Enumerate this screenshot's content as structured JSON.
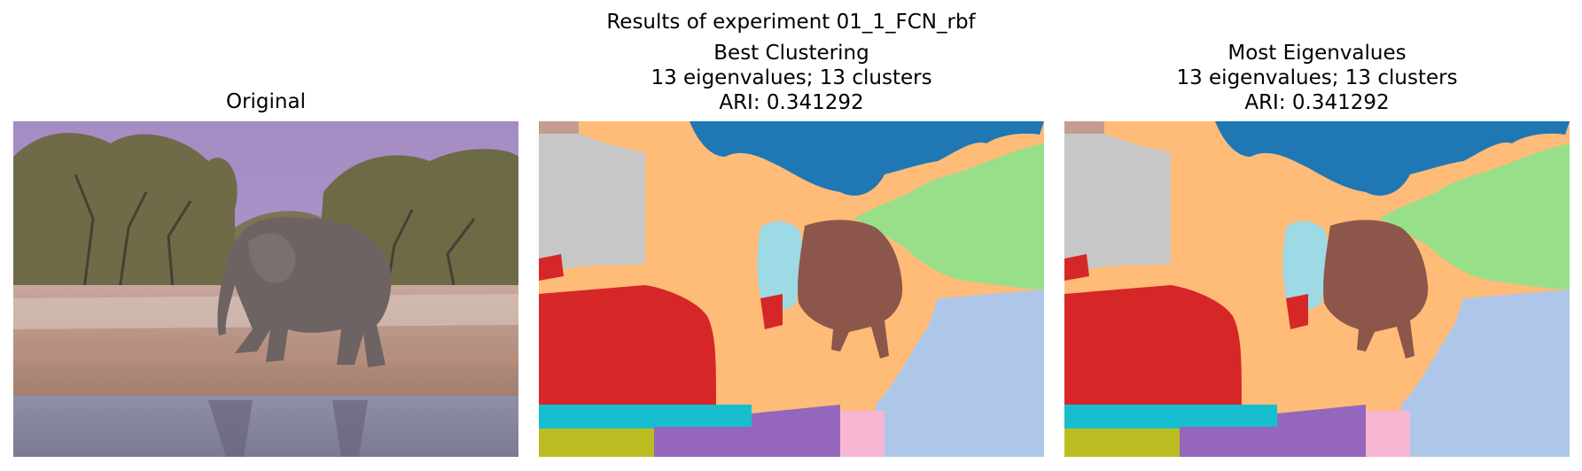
{
  "figure": {
    "suptitle": "Results of experiment 01_1_FCN_rbf"
  },
  "panels": [
    {
      "title_lines": [
        "Original"
      ],
      "kind": "photo"
    },
    {
      "title_lines": [
        "Best Clustering",
        "13 eigenvalues; 13 clusters",
        "ARI: 0.341292"
      ],
      "kind": "segmentation"
    },
    {
      "title_lines": [
        "Most Eigenvalues",
        "13 eigenvalues; 13 clusters",
        "ARI: 0.341292"
      ],
      "kind": "segmentation"
    }
  ],
  "cluster_colors": {
    "sky": "#1f77b4",
    "background": "#ffbb78",
    "trees_right": "#98df8a",
    "trees_left": "#c7c7c7",
    "elephant_body": "#8c564b",
    "elephant_head": "#9edae5",
    "ground_red": "#d62728",
    "gravel_right": "#aec7e8",
    "water_cyan": "#17becf",
    "water_olive": "#bcbd22",
    "water_purple": "#9467bd",
    "water_pink": "#f7b6d2",
    "corner_brown": "#c49c94"
  }
}
